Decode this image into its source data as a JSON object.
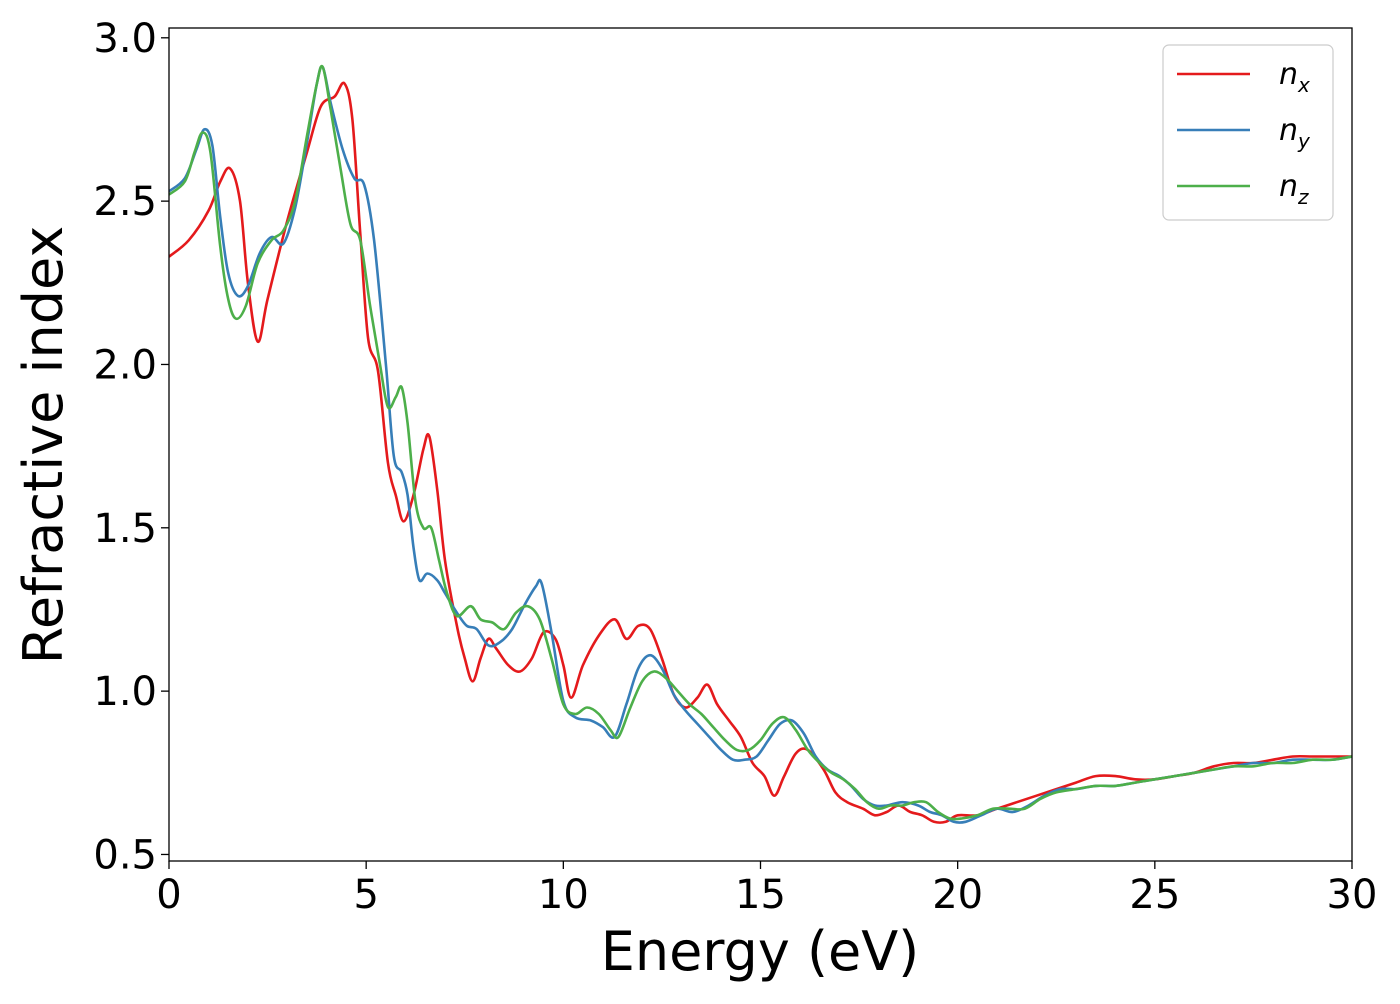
{
  "chart_data": {
    "type": "line",
    "title": "",
    "xlabel": "Energy (eV)",
    "ylabel": "Refractive index",
    "xlim": [
      0,
      30
    ],
    "ylim": [
      0.48,
      3.03
    ],
    "xticks": [
      0,
      5,
      10,
      15,
      20,
      25,
      30
    ],
    "xtick_labels": [
      "0",
      "5",
      "10",
      "15",
      "20",
      "25",
      "30"
    ],
    "yticks": [
      0.5,
      1.0,
      1.5,
      2.0,
      2.5,
      3.0
    ],
    "ytick_labels": [
      "0.5",
      "1.0",
      "1.5",
      "2.0",
      "2.5",
      "3.0"
    ],
    "grid": false,
    "legend_position": "top-right",
    "series": [
      {
        "name": "n_x",
        "label_base": "n",
        "label_sub": "x",
        "color": "#e41a1c",
        "points": [
          [
            0,
            2.33
          ],
          [
            0.5,
            2.38
          ],
          [
            1.0,
            2.47
          ],
          [
            1.3,
            2.56
          ],
          [
            1.55,
            2.6
          ],
          [
            1.8,
            2.5
          ],
          [
            2.0,
            2.25
          ],
          [
            2.25,
            2.07
          ],
          [
            2.5,
            2.2
          ],
          [
            3.0,
            2.44
          ],
          [
            3.5,
            2.65
          ],
          [
            3.85,
            2.79
          ],
          [
            4.2,
            2.82
          ],
          [
            4.45,
            2.86
          ],
          [
            4.65,
            2.75
          ],
          [
            4.85,
            2.4
          ],
          [
            5.05,
            2.08
          ],
          [
            5.3,
            1.98
          ],
          [
            5.55,
            1.7
          ],
          [
            5.75,
            1.6
          ],
          [
            5.95,
            1.52
          ],
          [
            6.2,
            1.6
          ],
          [
            6.45,
            1.74
          ],
          [
            6.6,
            1.78
          ],
          [
            6.8,
            1.62
          ],
          [
            7.0,
            1.4
          ],
          [
            7.3,
            1.2
          ],
          [
            7.5,
            1.1
          ],
          [
            7.7,
            1.03
          ],
          [
            7.9,
            1.1
          ],
          [
            8.1,
            1.16
          ],
          [
            8.3,
            1.13
          ],
          [
            8.6,
            1.08
          ],
          [
            8.9,
            1.06
          ],
          [
            9.2,
            1.1
          ],
          [
            9.5,
            1.18
          ],
          [
            9.8,
            1.16
          ],
          [
            10.0,
            1.08
          ],
          [
            10.2,
            0.98
          ],
          [
            10.5,
            1.08
          ],
          [
            10.9,
            1.17
          ],
          [
            11.3,
            1.22
          ],
          [
            11.6,
            1.16
          ],
          [
            11.9,
            1.2
          ],
          [
            12.2,
            1.19
          ],
          [
            12.5,
            1.1
          ],
          [
            12.8,
            0.99
          ],
          [
            13.1,
            0.95
          ],
          [
            13.4,
            0.98
          ],
          [
            13.65,
            1.02
          ],
          [
            13.9,
            0.96
          ],
          [
            14.2,
            0.91
          ],
          [
            14.5,
            0.86
          ],
          [
            14.8,
            0.78
          ],
          [
            15.1,
            0.74
          ],
          [
            15.35,
            0.68
          ],
          [
            15.6,
            0.74
          ],
          [
            15.9,
            0.81
          ],
          [
            16.2,
            0.82
          ],
          [
            16.6,
            0.76
          ],
          [
            16.9,
            0.69
          ],
          [
            17.2,
            0.66
          ],
          [
            17.6,
            0.64
          ],
          [
            17.9,
            0.62
          ],
          [
            18.2,
            0.63
          ],
          [
            18.5,
            0.65
          ],
          [
            18.8,
            0.63
          ],
          [
            19.1,
            0.62
          ],
          [
            19.4,
            0.6
          ],
          [
            19.7,
            0.6
          ],
          [
            20.0,
            0.62
          ],
          [
            20.5,
            0.62
          ],
          [
            21.0,
            0.64
          ],
          [
            21.5,
            0.66
          ],
          [
            22.0,
            0.68
          ],
          [
            22.5,
            0.7
          ],
          [
            23.0,
            0.72
          ],
          [
            23.5,
            0.74
          ],
          [
            24.0,
            0.74
          ],
          [
            24.5,
            0.73
          ],
          [
            25.0,
            0.73
          ],
          [
            25.5,
            0.74
          ],
          [
            26.0,
            0.75
          ],
          [
            26.5,
            0.77
          ],
          [
            27.0,
            0.78
          ],
          [
            27.5,
            0.78
          ],
          [
            28.0,
            0.79
          ],
          [
            28.5,
            0.8
          ],
          [
            29.0,
            0.8
          ],
          [
            29.5,
            0.8
          ],
          [
            30.0,
            0.8
          ]
        ]
      },
      {
        "name": "n_y",
        "label_base": "n",
        "label_sub": "y",
        "color": "#377eb8",
        "points": [
          [
            0,
            2.53
          ],
          [
            0.4,
            2.57
          ],
          [
            0.7,
            2.66
          ],
          [
            0.9,
            2.72
          ],
          [
            1.1,
            2.67
          ],
          [
            1.3,
            2.45
          ],
          [
            1.5,
            2.28
          ],
          [
            1.75,
            2.21
          ],
          [
            2.0,
            2.24
          ],
          [
            2.3,
            2.34
          ],
          [
            2.6,
            2.39
          ],
          [
            2.9,
            2.37
          ],
          [
            3.2,
            2.48
          ],
          [
            3.5,
            2.68
          ],
          [
            3.75,
            2.86
          ],
          [
            3.9,
            2.91
          ],
          [
            4.1,
            2.8
          ],
          [
            4.4,
            2.66
          ],
          [
            4.7,
            2.57
          ],
          [
            4.95,
            2.55
          ],
          [
            5.2,
            2.38
          ],
          [
            5.5,
            2.0
          ],
          [
            5.7,
            1.72
          ],
          [
            5.9,
            1.67
          ],
          [
            6.05,
            1.6
          ],
          [
            6.2,
            1.44
          ],
          [
            6.35,
            1.34
          ],
          [
            6.55,
            1.36
          ],
          [
            6.8,
            1.34
          ],
          [
            7.0,
            1.3
          ],
          [
            7.3,
            1.24
          ],
          [
            7.55,
            1.2
          ],
          [
            7.8,
            1.19
          ],
          [
            8.1,
            1.14
          ],
          [
            8.4,
            1.15
          ],
          [
            8.7,
            1.19
          ],
          [
            9.0,
            1.26
          ],
          [
            9.3,
            1.32
          ],
          [
            9.45,
            1.33
          ],
          [
            9.7,
            1.18
          ],
          [
            10.0,
            0.97
          ],
          [
            10.3,
            0.92
          ],
          [
            10.7,
            0.91
          ],
          [
            11.0,
            0.89
          ],
          [
            11.3,
            0.86
          ],
          [
            11.6,
            0.96
          ],
          [
            11.9,
            1.07
          ],
          [
            12.2,
            1.11
          ],
          [
            12.5,
            1.07
          ],
          [
            12.8,
            0.99
          ],
          [
            13.1,
            0.94
          ],
          [
            13.4,
            0.9
          ],
          [
            13.7,
            0.86
          ],
          [
            14.0,
            0.82
          ],
          [
            14.3,
            0.79
          ],
          [
            14.6,
            0.79
          ],
          [
            14.9,
            0.8
          ],
          [
            15.2,
            0.85
          ],
          [
            15.5,
            0.9
          ],
          [
            15.8,
            0.91
          ],
          [
            16.1,
            0.87
          ],
          [
            16.4,
            0.8
          ],
          [
            16.7,
            0.76
          ],
          [
            17.0,
            0.74
          ],
          [
            17.3,
            0.71
          ],
          [
            17.6,
            0.67
          ],
          [
            17.9,
            0.65
          ],
          [
            18.2,
            0.65
          ],
          [
            18.6,
            0.66
          ],
          [
            19.0,
            0.65
          ],
          [
            19.3,
            0.63
          ],
          [
            19.6,
            0.62
          ],
          [
            19.9,
            0.6
          ],
          [
            20.2,
            0.6
          ],
          [
            20.6,
            0.62
          ],
          [
            21.0,
            0.64
          ],
          [
            21.4,
            0.63
          ],
          [
            21.8,
            0.65
          ],
          [
            22.2,
            0.68
          ],
          [
            22.6,
            0.7
          ],
          [
            23.0,
            0.7
          ],
          [
            23.5,
            0.71
          ],
          [
            24.0,
            0.71
          ],
          [
            24.5,
            0.72
          ],
          [
            25.0,
            0.73
          ],
          [
            25.5,
            0.74
          ],
          [
            26.0,
            0.75
          ],
          [
            26.5,
            0.76
          ],
          [
            27.0,
            0.77
          ],
          [
            27.5,
            0.78
          ],
          [
            28.0,
            0.78
          ],
          [
            28.5,
            0.79
          ],
          [
            29.0,
            0.79
          ],
          [
            29.5,
            0.79
          ],
          [
            30.0,
            0.8
          ]
        ]
      },
      {
        "name": "n_z",
        "label_base": "n",
        "label_sub": "z",
        "color": "#4daf4a",
        "points": [
          [
            0,
            2.52
          ],
          [
            0.4,
            2.56
          ],
          [
            0.65,
            2.65
          ],
          [
            0.85,
            2.71
          ],
          [
            1.05,
            2.65
          ],
          [
            1.3,
            2.36
          ],
          [
            1.5,
            2.2
          ],
          [
            1.7,
            2.14
          ],
          [
            1.95,
            2.18
          ],
          [
            2.25,
            2.31
          ],
          [
            2.6,
            2.38
          ],
          [
            2.9,
            2.41
          ],
          [
            3.2,
            2.5
          ],
          [
            3.5,
            2.7
          ],
          [
            3.75,
            2.86
          ],
          [
            3.9,
            2.91
          ],
          [
            4.1,
            2.78
          ],
          [
            4.35,
            2.6
          ],
          [
            4.6,
            2.43
          ],
          [
            4.85,
            2.38
          ],
          [
            5.1,
            2.18
          ],
          [
            5.35,
            2.0
          ],
          [
            5.55,
            1.87
          ],
          [
            5.75,
            1.9
          ],
          [
            5.9,
            1.93
          ],
          [
            6.05,
            1.82
          ],
          [
            6.25,
            1.58
          ],
          [
            6.45,
            1.5
          ],
          [
            6.65,
            1.5
          ],
          [
            6.85,
            1.4
          ],
          [
            7.05,
            1.3
          ],
          [
            7.3,
            1.23
          ],
          [
            7.65,
            1.26
          ],
          [
            7.9,
            1.22
          ],
          [
            8.2,
            1.21
          ],
          [
            8.5,
            1.19
          ],
          [
            8.8,
            1.24
          ],
          [
            9.1,
            1.26
          ],
          [
            9.4,
            1.22
          ],
          [
            9.7,
            1.1
          ],
          [
            10.0,
            0.96
          ],
          [
            10.3,
            0.93
          ],
          [
            10.6,
            0.95
          ],
          [
            10.9,
            0.93
          ],
          [
            11.2,
            0.88
          ],
          [
            11.4,
            0.86
          ],
          [
            11.7,
            0.95
          ],
          [
            12.0,
            1.03
          ],
          [
            12.3,
            1.06
          ],
          [
            12.6,
            1.04
          ],
          [
            12.9,
            1.0
          ],
          [
            13.2,
            0.96
          ],
          [
            13.5,
            0.93
          ],
          [
            13.8,
            0.89
          ],
          [
            14.1,
            0.85
          ],
          [
            14.4,
            0.82
          ],
          [
            14.7,
            0.82
          ],
          [
            15.0,
            0.85
          ],
          [
            15.3,
            0.9
          ],
          [
            15.6,
            0.92
          ],
          [
            15.9,
            0.88
          ],
          [
            16.2,
            0.82
          ],
          [
            16.5,
            0.78
          ],
          [
            16.8,
            0.75
          ],
          [
            17.1,
            0.73
          ],
          [
            17.4,
            0.7
          ],
          [
            17.7,
            0.66
          ],
          [
            18.0,
            0.64
          ],
          [
            18.3,
            0.65
          ],
          [
            18.6,
            0.65
          ],
          [
            18.9,
            0.66
          ],
          [
            19.2,
            0.66
          ],
          [
            19.5,
            0.63
          ],
          [
            19.8,
            0.61
          ],
          [
            20.1,
            0.61
          ],
          [
            20.5,
            0.62
          ],
          [
            20.9,
            0.64
          ],
          [
            21.3,
            0.64
          ],
          [
            21.7,
            0.64
          ],
          [
            22.1,
            0.67
          ],
          [
            22.5,
            0.69
          ],
          [
            23.0,
            0.7
          ],
          [
            23.5,
            0.71
          ],
          [
            24.0,
            0.71
          ],
          [
            24.5,
            0.72
          ],
          [
            25.0,
            0.73
          ],
          [
            25.5,
            0.74
          ],
          [
            26.0,
            0.75
          ],
          [
            26.5,
            0.76
          ],
          [
            27.0,
            0.77
          ],
          [
            27.5,
            0.77
          ],
          [
            28.0,
            0.78
          ],
          [
            28.5,
            0.78
          ],
          [
            29.0,
            0.79
          ],
          [
            29.5,
            0.79
          ],
          [
            30.0,
            0.8
          ]
        ]
      }
    ]
  }
}
